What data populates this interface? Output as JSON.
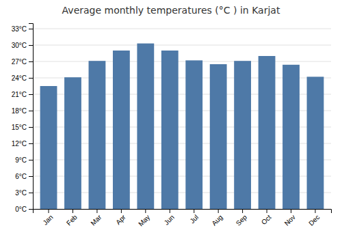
{
  "chart_data": {
    "type": "bar",
    "title": "Average monthly temperatures (°C ) in Karjat",
    "categories": [
      "Jan",
      "Feb",
      "Mar",
      "Apr",
      "May",
      "Jun",
      "Jul",
      "Aug",
      "Sep",
      "Oct",
      "Nov",
      "Dec"
    ],
    "values": [
      22.5,
      24.1,
      27.1,
      29.0,
      30.3,
      29.0,
      27.2,
      26.5,
      27.1,
      28.0,
      26.4,
      24.2
    ],
    "ylim": [
      0,
      34
    ],
    "yticks": [
      {
        "value": 0,
        "label": "0°C"
      },
      {
        "value": 3,
        "label": "3°C"
      },
      {
        "value": 6,
        "label": "6°C"
      },
      {
        "value": 9,
        "label": "9°C"
      },
      {
        "value": 12,
        "label": "12°C"
      },
      {
        "value": 15,
        "label": "15°C"
      },
      {
        "value": 18,
        "label": "18°C"
      },
      {
        "value": 21,
        "label": "21°C"
      },
      {
        "value": 24,
        "label": "24°C"
      },
      {
        "value": 27,
        "label": "27°C"
      },
      {
        "value": 30,
        "label": "30°C"
      },
      {
        "value": 33,
        "label": "33°C"
      }
    ],
    "grid": true
  }
}
